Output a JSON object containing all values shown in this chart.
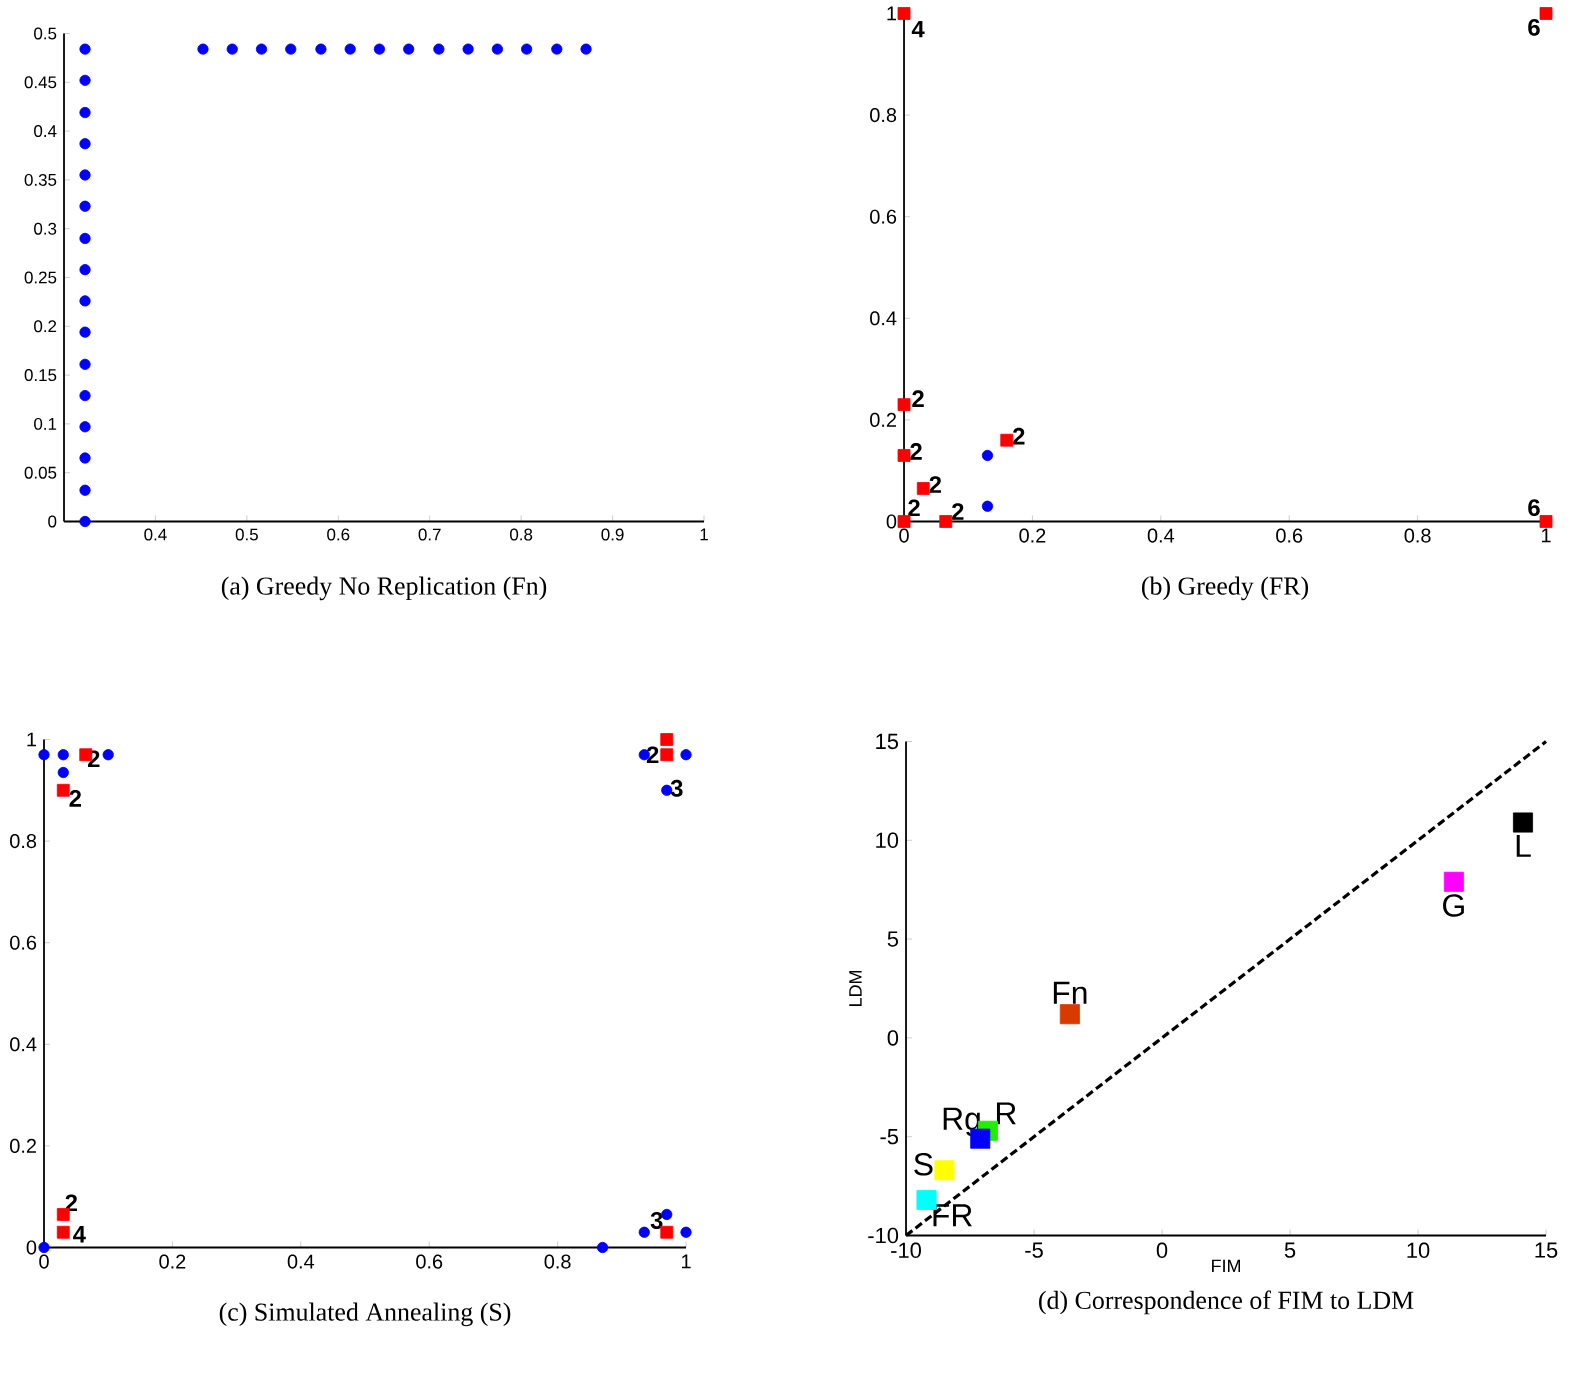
{
  "chart_data": [
    {
      "type": "scatter",
      "title": "(a) Greedy No Replication (Fn)",
      "xlim": [
        0.3,
        1
      ],
      "ylim": [
        0,
        0.5
      ],
      "xticks": [
        0.4,
        0.5,
        0.6,
        0.7,
        0.8,
        0.9,
        1
      ],
      "yticks": [
        0,
        0.05,
        0.1,
        0.15,
        0.2,
        0.25,
        0.3,
        0.35,
        0.4,
        0.45,
        0.5
      ],
      "series": [
        {
          "color": "#0000ff",
          "marker": "circle",
          "x": [
            0.323,
            0.323,
            0.323,
            0.323,
            0.323,
            0.323,
            0.323,
            0.323,
            0.323,
            0.323,
            0.323,
            0.323,
            0.323,
            0.323,
            0.323,
            0.323,
            0.452,
            0.484,
            0.516,
            0.548,
            0.581,
            0.613,
            0.645,
            0.677,
            0.71,
            0.742,
            0.774,
            0.806,
            0.839,
            0.871
          ],
          "values": [
            0,
            0.032,
            0.065,
            0.097,
            0.129,
            0.161,
            0.194,
            0.226,
            0.258,
            0.29,
            0.323,
            0.355,
            0.387,
            0.419,
            0.452,
            0.484,
            0.484,
            0.484,
            0.484,
            0.484,
            0.484,
            0.484,
            0.484,
            0.484,
            0.484,
            0.484,
            0.484,
            0.484,
            0.484,
            0.484
          ]
        }
      ]
    },
    {
      "type": "scatter",
      "title": "(b) Greedy (FR)",
      "xlim": [
        0,
        1
      ],
      "ylim": [
        0,
        1
      ],
      "xticks": [
        0,
        0.2,
        0.4,
        0.6,
        0.8,
        1
      ],
      "yticks": [
        0,
        0.2,
        0.4,
        0.6,
        0.8,
        1
      ],
      "series": [
        {
          "color": "#0000ff",
          "marker": "circle",
          "x": [
            0.13,
            0.13
          ],
          "values": [
            0.13,
            0.03
          ]
        },
        {
          "color": "#ff0000",
          "marker": "square",
          "x": [
            0,
            1,
            1,
            0,
            0,
            0.03,
            0,
            0.065,
            0.16
          ],
          "values": [
            1,
            1,
            0,
            0.23,
            0.13,
            0.065,
            0,
            0,
            0.16
          ]
        }
      ],
      "annotations": [
        {
          "text": "4",
          "x": 0,
          "y": 1
        },
        {
          "text": "6",
          "x": 1,
          "y": 1
        },
        {
          "text": "6",
          "x": 1,
          "y": 0
        },
        {
          "text": "2",
          "x": 0,
          "y": 0.23
        },
        {
          "text": "2",
          "x": 0,
          "y": 0.13
        },
        {
          "text": "2",
          "x": 0.03,
          "y": 0.065
        },
        {
          "text": "2",
          "x": 0,
          "y": 0
        },
        {
          "text": "2",
          "x": 0.065,
          "y": 0
        },
        {
          "text": "2",
          "x": 0.16,
          "y": 0.16
        }
      ]
    },
    {
      "type": "scatter",
      "title": "(c) Simulated Annealing (S)",
      "xlim": [
        0,
        1
      ],
      "ylim": [
        0,
        1
      ],
      "xticks": [
        0,
        0.2,
        0.4,
        0.6,
        0.8,
        1
      ],
      "yticks": [
        0,
        0.2,
        0.4,
        0.6,
        0.8,
        1
      ],
      "series": [
        {
          "color": "#0000ff",
          "marker": "circle",
          "x": [
            0,
            0.03,
            0.03,
            0.1,
            0.935,
            1,
            0.97,
            0,
            0.87,
            0.935,
            0.97,
            1
          ],
          "values": [
            0.97,
            0.97,
            0.935,
            0.97,
            0.97,
            0.97,
            0.9,
            0,
            0,
            0.03,
            0.065,
            0.03
          ]
        },
        {
          "color": "#ff0000",
          "marker": "square",
          "x": [
            0.065,
            0.03,
            0.97,
            0.97,
            0.03,
            0.03,
            0.97
          ],
          "values": [
            0.97,
            0.9,
            1,
            0.97,
            0.065,
            0.03,
            0.03
          ]
        }
      ],
      "annotations": [
        {
          "text": "2",
          "x": 0.065,
          "y": 0.97
        },
        {
          "text": "2",
          "x": 0.03,
          "y": 0.9
        },
        {
          "text": "2",
          "x": 0.97,
          "y": 0.97
        },
        {
          "text": "3",
          "x": 0.97,
          "y": 0.9
        },
        {
          "text": "2",
          "x": 0.03,
          "y": 0.065
        },
        {
          "text": "4",
          "x": 0.03,
          "y": 0.03
        },
        {
          "text": "3",
          "x": 0.97,
          "y": 0.03
        }
      ]
    },
    {
      "type": "scatter",
      "title": "(d) Correspondence of FIM to LDM",
      "xlabel": "FIM",
      "ylabel": "LDM",
      "xlim": [
        -10,
        15
      ],
      "ylim": [
        -10,
        15
      ],
      "xticks": [
        -10,
        -5,
        0,
        5,
        10,
        15
      ],
      "yticks": [
        -10,
        -5,
        0,
        5,
        10,
        15
      ],
      "series": [
        {
          "type": "line",
          "line_style": "dashed",
          "color": "#000000",
          "x": [
            -10,
            15
          ],
          "values": [
            -10,
            15
          ]
        },
        {
          "name": "Fn",
          "color": "#d93a00",
          "marker": "square",
          "x": [
            -3.6
          ],
          "values": [
            1.2
          ]
        },
        {
          "name": "L",
          "color": "#000000",
          "marker": "square",
          "x": [
            14.1
          ],
          "values": [
            10.9
          ]
        },
        {
          "name": "G",
          "color": "#ff00ff",
          "marker": "square",
          "x": [
            11.4
          ],
          "values": [
            7.9
          ]
        },
        {
          "name": "R",
          "color": "#22ee00",
          "marker": "square",
          "x": [
            -6.8
          ],
          "values": [
            -4.7
          ]
        },
        {
          "name": "Rg",
          "color": "#0000ff",
          "marker": "square",
          "x": [
            -7.1
          ],
          "values": [
            -5.1
          ]
        },
        {
          "name": "S",
          "color": "#ffff00",
          "marker": "square",
          "x": [
            -8.5
          ],
          "values": [
            -6.7
          ]
        },
        {
          "name": "FR",
          "color": "#00ffff",
          "marker": "square",
          "x": [
            -9.2
          ],
          "values": [
            -8.2
          ]
        }
      ]
    }
  ]
}
